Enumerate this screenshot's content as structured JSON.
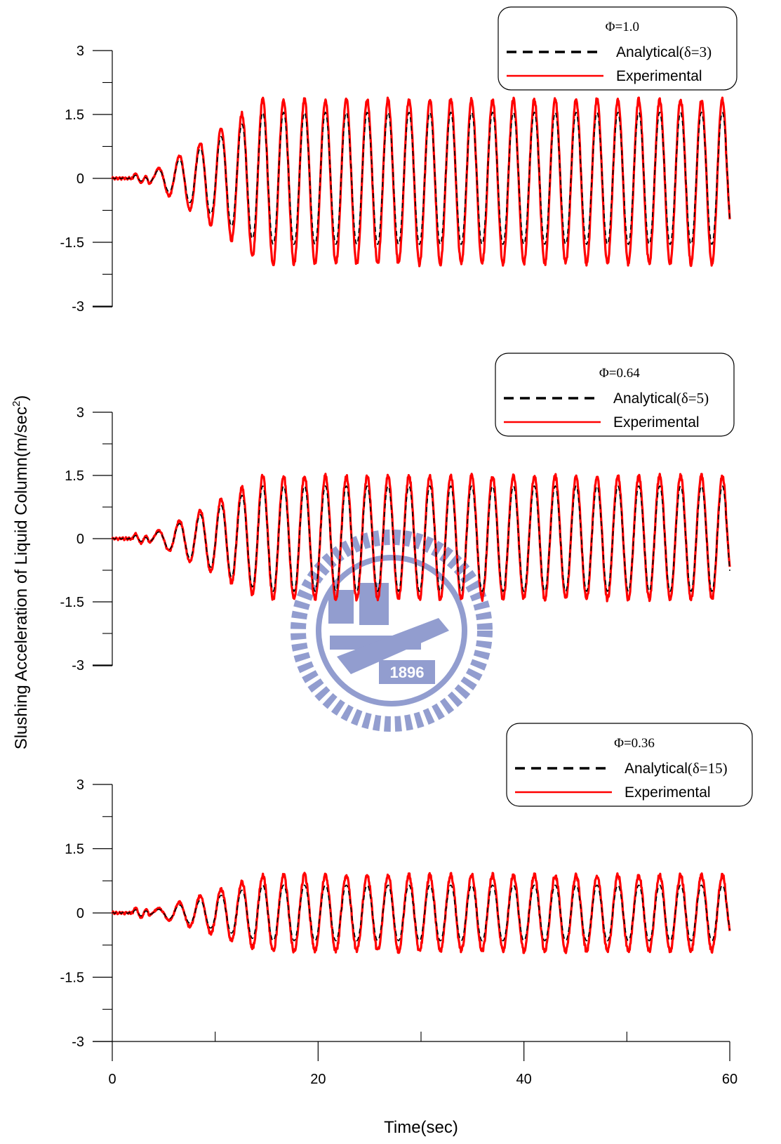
{
  "colors": {
    "analytical": "#000000",
    "experimental": "#ff0000",
    "axis": "#000000",
    "watermark": "#3a4ea8"
  },
  "watermark": {
    "text": "1896",
    "icon": "university-seal-watermark"
  },
  "chart_data": {
    "type": "line",
    "xlabel": "Time(sec)",
    "ylabel": "Slushing Acceleration of Liquid Column(m/sec",
    "ylabel_sup": "2",
    "ylabel_end": ")",
    "x_range": [
      0,
      60
    ],
    "x_ticks": [
      "0",
      "20",
      "40",
      "60"
    ],
    "x_minor_step": 10,
    "panels": [
      {
        "legend_title": "Φ=1.0",
        "legend_placement": "top-right",
        "ylim": [
          -3,
          3
        ],
        "y_ticks": [
          "3",
          "1.5",
          "0",
          "-1.5",
          "-3"
        ],
        "y_minor_step": 0.75,
        "series": [
          {
            "name": "Analytical",
            "delta_label": "(δ=3)",
            "style": "dashed",
            "steady_amplitude": 1.55,
            "first_peak_time": 6.5
          },
          {
            "name": "Experimental",
            "style": "solid",
            "peak_max": 2.0,
            "trough_min": -2.15,
            "period": 2.03
          }
        ]
      },
      {
        "legend_title": "Φ=0.64",
        "legend_placement": "top-right",
        "ylim": [
          -3,
          3
        ],
        "y_ticks": [
          "3",
          "1.5",
          "0",
          "-1.5",
          "-3"
        ],
        "y_minor_step": 0.75,
        "series": [
          {
            "name": "Analytical",
            "delta_label": "(δ=5)",
            "style": "dashed",
            "steady_amplitude": 1.25,
            "first_peak_time": 6.5
          },
          {
            "name": "Experimental",
            "style": "solid",
            "peak_max": 1.6,
            "trough_min": -1.55,
            "period": 2.03
          }
        ]
      },
      {
        "legend_title": "Φ=0.36",
        "legend_placement": "top-right",
        "ylim": [
          -3,
          3
        ],
        "y_ticks": [
          "3",
          "1.5",
          "0",
          "-1.5",
          "-3"
        ],
        "y_minor_step": 0.75,
        "series": [
          {
            "name": "Analytical",
            "delta_label": "(δ=15)",
            "style": "dashed",
            "steady_amplitude": 0.65,
            "first_peak_time": 6.5
          },
          {
            "name": "Experimental",
            "style": "solid",
            "peak_max": 0.95,
            "trough_min": -0.95,
            "period": 2.03
          }
        ]
      }
    ]
  }
}
